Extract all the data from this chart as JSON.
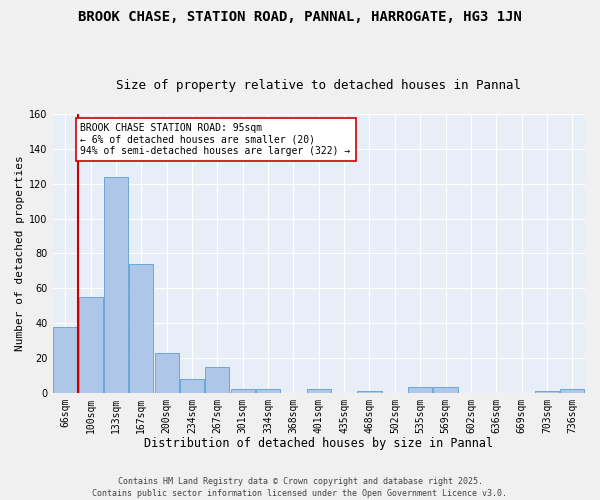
{
  "title_line1": "BROOK CHASE, STATION ROAD, PANNAL, HARROGATE, HG3 1JN",
  "title_line2": "Size of property relative to detached houses in Pannal",
  "xlabel": "Distribution of detached houses by size in Pannal",
  "ylabel": "Number of detached properties",
  "categories": [
    "66sqm",
    "100sqm",
    "133sqm",
    "167sqm",
    "200sqm",
    "234sqm",
    "267sqm",
    "301sqm",
    "334sqm",
    "368sqm",
    "401sqm",
    "435sqm",
    "468sqm",
    "502sqm",
    "535sqm",
    "569sqm",
    "602sqm",
    "636sqm",
    "669sqm",
    "703sqm",
    "736sqm"
  ],
  "values": [
    38,
    55,
    124,
    74,
    23,
    8,
    15,
    2,
    2,
    0,
    2,
    0,
    1,
    0,
    3,
    3,
    0,
    0,
    0,
    1,
    2
  ],
  "bar_color": "#aec6e8",
  "bar_edge_color": "#5a9fd4",
  "vline_color": "#cc0000",
  "annotation_box_edge_color": "#cc0000",
  "marker_label_line1": "BROOK CHASE STATION ROAD: 95sqm",
  "marker_label_line2": "← 6% of detached houses are smaller (20)",
  "marker_label_line3": "94% of semi-detached houses are larger (322) →",
  "ylim": [
    0,
    160
  ],
  "yticks": [
    0,
    20,
    40,
    60,
    80,
    100,
    120,
    140,
    160
  ],
  "fig_background": "#f0f0f0",
  "ax_background": "#e8eef8",
  "grid_color": "#ffffff",
  "footnote": "Contains HM Land Registry data © Crown copyright and database right 2025.\nContains public sector information licensed under the Open Government Licence v3.0.",
  "title_fontsize": 10,
  "subtitle_fontsize": 9,
  "tick_fontsize": 7,
  "xlabel_fontsize": 8.5,
  "ylabel_fontsize": 8,
  "annotation_fontsize": 7,
  "footnote_fontsize": 6
}
